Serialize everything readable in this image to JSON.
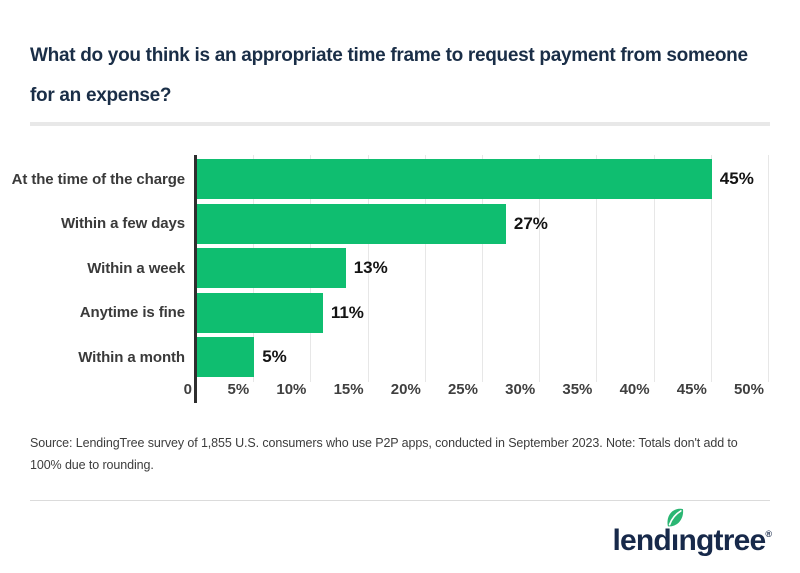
{
  "title": "What do you think is an appropriate time frame to request payment from someone for an expense?",
  "chart_data": {
    "type": "bar",
    "orientation": "horizontal",
    "title": "What do you think is an appropriate time frame to request payment from someone for an expense?",
    "categories": [
      "At the time of the charge",
      "Within a few days",
      "Within a week",
      "Anytime is fine",
      "Within a month"
    ],
    "values": [
      45,
      27,
      13,
      11,
      5
    ],
    "value_labels": [
      "45%",
      "27%",
      "13%",
      "11%",
      "5%"
    ],
    "x_ticks": [
      "0",
      "5%",
      "10%",
      "15%",
      "20%",
      "25%",
      "30%",
      "35%",
      "40%",
      "45%",
      "50%"
    ],
    "x_tick_values": [
      0,
      5,
      10,
      15,
      20,
      25,
      30,
      35,
      40,
      45,
      50
    ],
    "xlim": [
      0,
      50
    ],
    "xlabel": "",
    "ylabel": "",
    "grid": true,
    "legend": false,
    "bar_color": "#0FBE70"
  },
  "source_note": "Source: LendingTree survey of 1,855 U.S. consumers who use P2P apps, conducted in September 2023. Note: Totals don't add to 100% due to rounding.",
  "logo": {
    "brand": "lendingtree",
    "part1": "lend",
    "dotless_i": "ı",
    "part2": "ngtree",
    "registered": "®"
  },
  "colors": {
    "accent_green": "#0FBE70",
    "leaf_green": "#2BB673",
    "title_navy": "#1A2E47",
    "logo_navy": "#17294A",
    "axis_dark": "#2E2E2E",
    "gridline": "#E7E7E7"
  }
}
